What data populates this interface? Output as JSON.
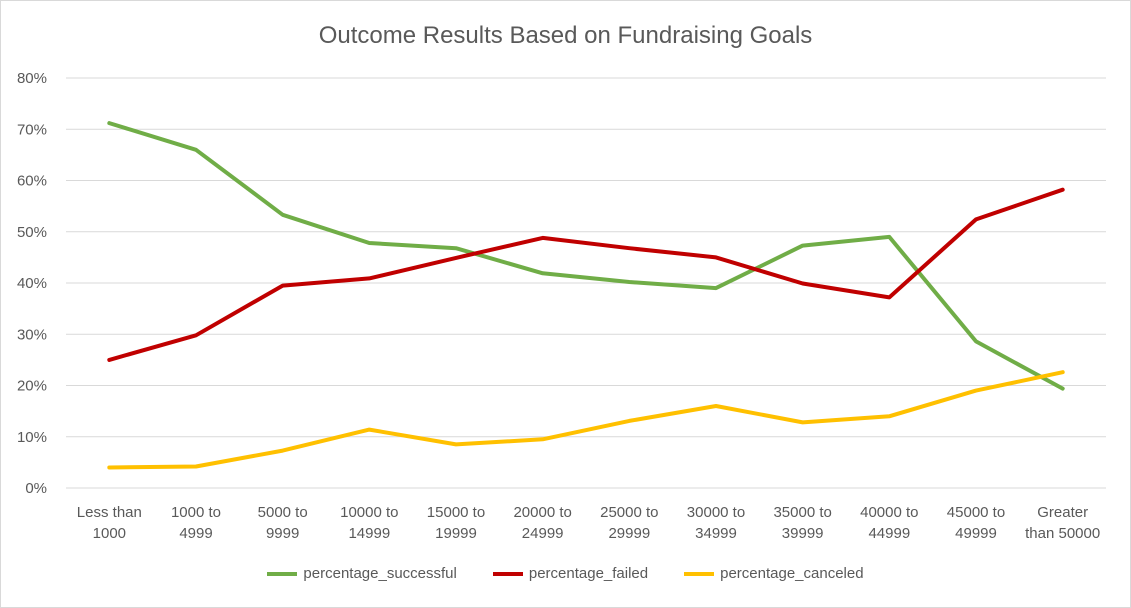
{
  "chart_data": {
    "type": "line",
    "title": "Outcome Results Based on Fundraising Goals",
    "xlabel": "",
    "ylabel": "",
    "categories": [
      [
        "Less than",
        "1000"
      ],
      [
        "1000 to",
        "4999"
      ],
      [
        "5000 to",
        "9999"
      ],
      [
        "10000 to",
        "14999"
      ],
      [
        "15000 to",
        "19999"
      ],
      [
        "20000 to",
        "24999"
      ],
      [
        "25000 to",
        "29999"
      ],
      [
        "30000 to",
        "34999"
      ],
      [
        "35000 to",
        "39999"
      ],
      [
        "40000 to",
        "44999"
      ],
      [
        "45000 to",
        "49999"
      ],
      [
        "Greater",
        "than 50000"
      ]
    ],
    "ylim": [
      0,
      0.8
    ],
    "yticks": [
      0,
      0.1,
      0.2,
      0.3,
      0.4,
      0.5,
      0.6,
      0.7,
      0.8
    ],
    "ytick_labels": [
      "0%",
      "10%",
      "20%",
      "30%",
      "40%",
      "50%",
      "60%",
      "70%",
      "80%"
    ],
    "grid": true,
    "legend_position": "bottom",
    "series": [
      {
        "name": "percentage_successful",
        "color": "#70AD47",
        "values": [
          0.712,
          0.66,
          0.533,
          0.478,
          0.468,
          0.419,
          0.402,
          0.39,
          0.473,
          0.49,
          0.286,
          0.194
        ]
      },
      {
        "name": "percentage_failed",
        "color": "#C00000",
        "values": [
          0.25,
          0.298,
          0.395,
          0.409,
          0.449,
          0.488,
          0.468,
          0.45,
          0.399,
          0.372,
          0.524,
          0.582
        ]
      },
      {
        "name": "percentage_canceled",
        "color": "#FFC000",
        "values": [
          0.04,
          0.042,
          0.073,
          0.114,
          0.085,
          0.095,
          0.131,
          0.16,
          0.128,
          0.14,
          0.19,
          0.226
        ]
      }
    ]
  }
}
